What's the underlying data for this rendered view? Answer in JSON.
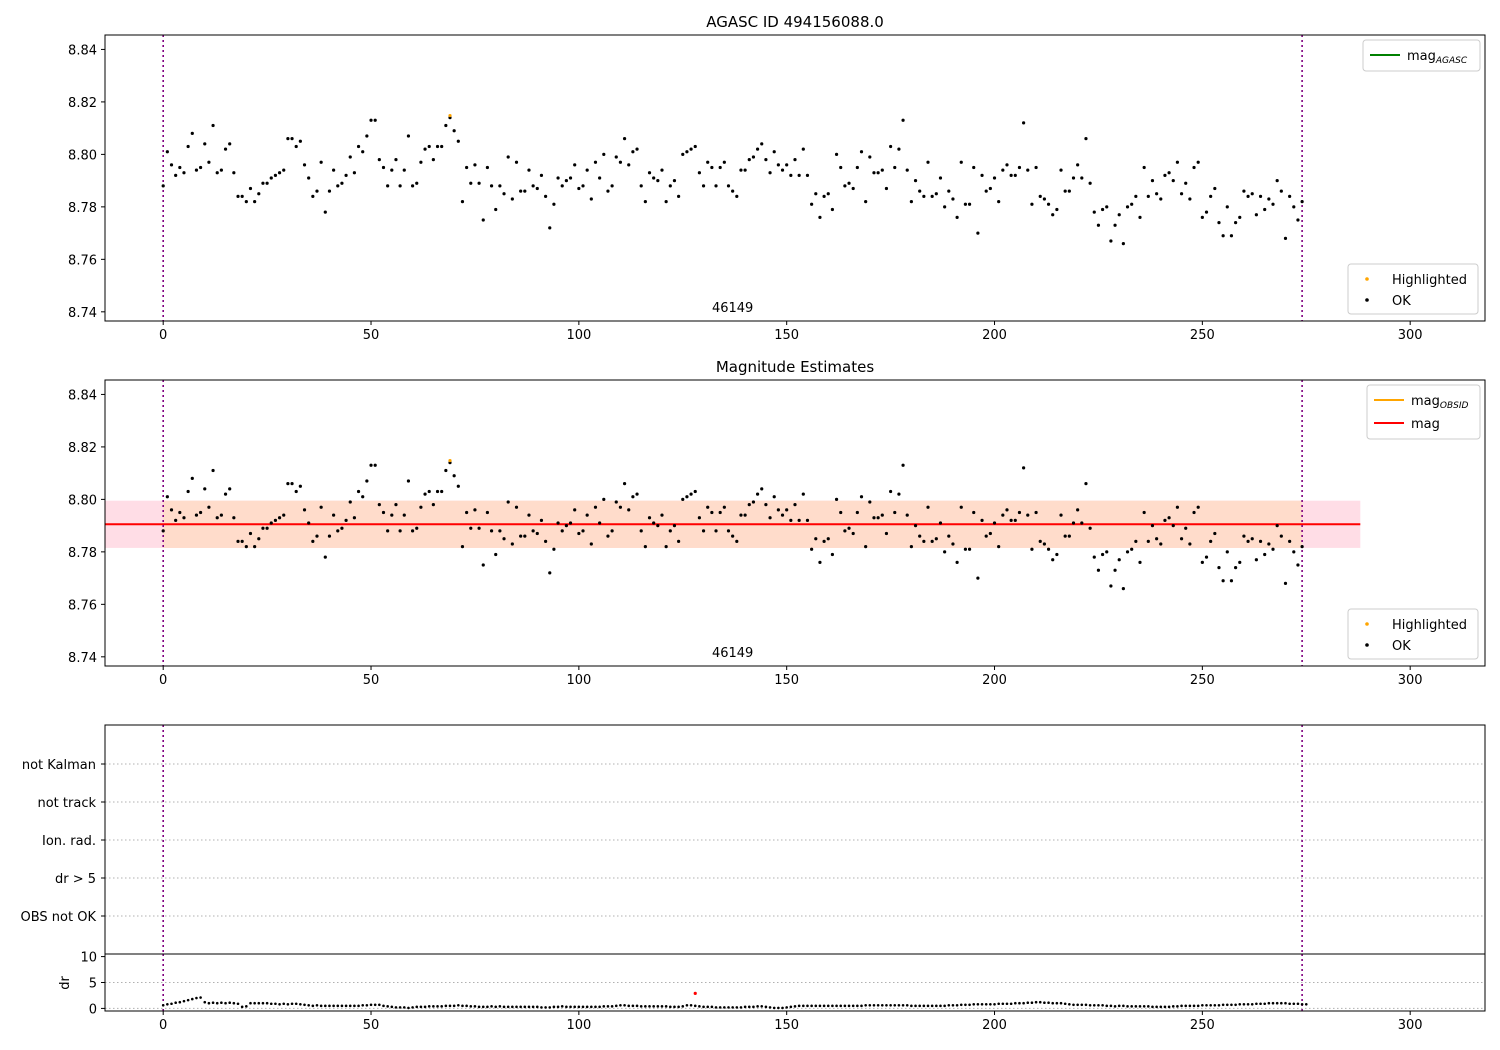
{
  "chart_data": [
    {
      "type": "scatter",
      "title": "AGASC ID 494156088.0",
      "annotation": "46149",
      "xlim": [
        -14,
        318
      ],
      "ylim": [
        8.7365,
        8.8455
      ],
      "xticks": [
        0,
        50,
        100,
        150,
        200,
        250,
        300
      ],
      "yticks": [
        8.74,
        8.76,
        8.78,
        8.8,
        8.82,
        8.84
      ],
      "grid": false,
      "vlines": [
        0,
        274
      ],
      "legend_lines": {
        "placement": "top-right",
        "entries": [
          {
            "label": "mag",
            "sub": "AGASC",
            "color": "#008000"
          }
        ]
      },
      "legend_points": {
        "placement": "bottom-right",
        "entries": [
          {
            "label": "Highlighted",
            "color": "#ffa500"
          },
          {
            "label": "OK",
            "color": "#000000"
          }
        ]
      },
      "highlighted": [
        [
          69,
          8.8148
        ]
      ],
      "series": [
        {
          "name": "OK",
          "color": "#000000",
          "x_start": 0,
          "values": [
            8.788,
            8.801,
            8.796,
            8.792,
            8.795,
            8.793,
            8.803,
            8.808,
            8.794,
            8.795,
            8.804,
            8.797,
            8.811,
            8.793,
            8.794,
            8.802,
            8.804,
            8.793,
            8.784,
            8.784,
            8.782,
            8.787,
            8.782,
            8.785,
            8.789,
            8.789,
            8.791,
            8.792,
            8.793,
            8.794,
            8.806,
            8.806,
            8.803,
            8.805,
            8.796,
            8.791,
            8.784,
            8.786,
            8.797,
            8.778,
            8.786,
            8.794,
            8.788,
            8.789,
            8.792,
            8.799,
            8.793,
            8.803,
            8.801,
            8.807,
            8.813,
            8.813,
            8.798,
            8.795,
            8.788,
            8.794,
            8.798,
            8.788,
            8.794,
            8.807,
            8.788,
            8.789,
            8.797,
            8.802,
            8.803,
            8.798,
            8.803,
            8.803,
            8.811,
            8.814,
            8.809,
            8.805,
            8.782,
            8.795,
            8.789,
            8.796,
            8.789,
            8.775,
            8.795,
            8.788,
            8.779,
            8.788,
            8.785,
            8.799,
            8.783,
            8.797,
            8.786,
            8.786,
            8.794,
            8.788,
            8.787,
            8.792,
            8.784,
            8.772,
            8.781,
            8.791,
            8.788,
            8.79,
            8.791,
            8.796,
            8.787,
            8.788,
            8.794,
            8.783,
            8.797,
            8.791,
            8.8,
            8.786,
            8.788,
            8.799,
            8.797,
            8.806,
            8.796,
            8.801,
            8.802,
            8.788,
            8.782,
            8.793,
            8.791,
            8.79,
            8.794,
            8.782,
            8.788,
            8.79,
            8.784,
            8.8,
            8.801,
            8.802,
            8.803,
            8.793,
            8.788,
            8.797,
            8.795,
            8.788,
            8.795,
            8.797,
            8.788,
            8.786,
            8.784,
            8.794,
            8.794,
            8.798,
            8.799,
            8.802,
            8.804,
            8.798,
            8.793,
            8.801,
            8.796,
            8.794,
            8.796,
            8.792,
            8.798,
            8.792,
            8.802,
            8.792,
            8.781,
            8.785,
            8.776,
            8.784,
            8.785,
            8.779,
            8.8,
            8.795,
            8.788,
            8.789,
            8.787,
            8.795,
            8.801,
            8.782,
            8.799,
            8.793,
            8.793,
            8.794,
            8.787,
            8.803,
            8.795,
            8.802,
            8.813,
            8.794,
            8.782,
            8.79,
            8.786,
            8.784,
            8.797,
            8.784,
            8.785,
            8.791,
            8.78,
            8.786,
            8.783,
            8.776,
            8.797,
            8.781,
            8.781,
            8.795,
            8.77,
            8.792,
            8.786,
            8.787,
            8.791,
            8.782,
            8.794,
            8.796,
            8.792,
            8.792,
            8.795,
            8.812,
            8.794,
            8.781,
            8.795,
            8.784,
            8.783,
            8.781,
            8.777,
            8.779,
            8.794,
            8.786,
            8.786,
            8.791,
            8.796,
            8.791,
            8.806,
            8.789,
            8.778,
            8.773,
            8.779,
            8.78,
            8.767,
            8.773,
            8.777,
            8.766,
            8.78,
            8.781,
            8.784,
            8.776,
            8.795,
            8.784,
            8.79,
            8.785,
            8.783,
            8.792,
            8.793,
            8.79,
            8.797,
            8.785,
            8.789,
            8.783,
            8.795,
            8.797,
            8.776,
            8.778,
            8.784,
            8.787,
            8.774,
            8.769,
            8.78,
            8.769,
            8.774,
            8.776,
            8.786,
            8.784,
            8.785,
            8.777,
            8.784,
            8.779,
            8.783,
            8.781,
            8.79,
            8.786,
            8.768,
            8.784,
            8.78,
            8.775,
            8.782
          ]
        }
      ]
    },
    {
      "type": "scatter",
      "title": "Magnitude Estimates",
      "annotation": "46149",
      "xlim": [
        -14,
        318
      ],
      "ylim": [
        8.7365,
        8.8455
      ],
      "xticks": [
        0,
        50,
        100,
        150,
        200,
        250,
        300
      ],
      "yticks": [
        8.74,
        8.76,
        8.78,
        8.8,
        8.82,
        8.84
      ],
      "grid": false,
      "vlines": [
        0,
        274
      ],
      "mag_line": 8.7905,
      "band_outer": {
        "x": [
          -14,
          288
        ],
        "y": [
          8.7815,
          8.7995
        ],
        "color": "#ffdde6"
      },
      "band_inner": {
        "x": [
          0,
          274
        ],
        "y": [
          8.7815,
          8.7995
        ],
        "color": "#ffdccb"
      },
      "legend_lines": {
        "placement": "top-right",
        "entries": [
          {
            "label": "mag",
            "sub": "OBSID",
            "color": "#ffa500"
          },
          {
            "label": "mag",
            "sub": "",
            "color": "#ff0000"
          }
        ]
      },
      "legend_points": {
        "placement": "bottom-right",
        "entries": [
          {
            "label": "Highlighted",
            "color": "#ffa500"
          },
          {
            "label": "OK",
            "color": "#000000"
          }
        ]
      },
      "highlighted": [
        [
          69,
          8.8148
        ]
      ],
      "series": [
        {
          "name": "OK",
          "color": "#000000",
          "x_start": 0,
          "values": [
            8.788,
            8.801,
            8.796,
            8.792,
            8.795,
            8.793,
            8.803,
            8.808,
            8.794,
            8.795,
            8.804,
            8.797,
            8.811,
            8.793,
            8.794,
            8.802,
            8.804,
            8.793,
            8.784,
            8.784,
            8.782,
            8.787,
            8.782,
            8.785,
            8.789,
            8.789,
            8.791,
            8.792,
            8.793,
            8.794,
            8.806,
            8.806,
            8.803,
            8.805,
            8.796,
            8.791,
            8.784,
            8.786,
            8.797,
            8.778,
            8.786,
            8.794,
            8.788,
            8.789,
            8.792,
            8.799,
            8.793,
            8.803,
            8.801,
            8.807,
            8.813,
            8.813,
            8.798,
            8.795,
            8.788,
            8.794,
            8.798,
            8.788,
            8.794,
            8.807,
            8.788,
            8.789,
            8.797,
            8.802,
            8.803,
            8.798,
            8.803,
            8.803,
            8.811,
            8.814,
            8.809,
            8.805,
            8.782,
            8.795,
            8.789,
            8.796,
            8.789,
            8.775,
            8.795,
            8.788,
            8.779,
            8.788,
            8.785,
            8.799,
            8.783,
            8.797,
            8.786,
            8.786,
            8.794,
            8.788,
            8.787,
            8.792,
            8.784,
            8.772,
            8.781,
            8.791,
            8.788,
            8.79,
            8.791,
            8.796,
            8.787,
            8.788,
            8.794,
            8.783,
            8.797,
            8.791,
            8.8,
            8.786,
            8.788,
            8.799,
            8.797,
            8.806,
            8.796,
            8.801,
            8.802,
            8.788,
            8.782,
            8.793,
            8.791,
            8.79,
            8.794,
            8.782,
            8.788,
            8.79,
            8.784,
            8.8,
            8.801,
            8.802,
            8.803,
            8.793,
            8.788,
            8.797,
            8.795,
            8.788,
            8.795,
            8.797,
            8.788,
            8.786,
            8.784,
            8.794,
            8.794,
            8.798,
            8.799,
            8.802,
            8.804,
            8.798,
            8.793,
            8.801,
            8.796,
            8.794,
            8.796,
            8.792,
            8.798,
            8.792,
            8.802,
            8.792,
            8.781,
            8.785,
            8.776,
            8.784,
            8.785,
            8.779,
            8.8,
            8.795,
            8.788,
            8.789,
            8.787,
            8.795,
            8.801,
            8.782,
            8.799,
            8.793,
            8.793,
            8.794,
            8.787,
            8.803,
            8.795,
            8.802,
            8.813,
            8.794,
            8.782,
            8.79,
            8.786,
            8.784,
            8.797,
            8.784,
            8.785,
            8.791,
            8.78,
            8.786,
            8.783,
            8.776,
            8.797,
            8.781,
            8.781,
            8.795,
            8.77,
            8.792,
            8.786,
            8.787,
            8.791,
            8.782,
            8.794,
            8.796,
            8.792,
            8.792,
            8.795,
            8.812,
            8.794,
            8.781,
            8.795,
            8.784,
            8.783,
            8.781,
            8.777,
            8.779,
            8.794,
            8.786,
            8.786,
            8.791,
            8.796,
            8.791,
            8.806,
            8.789,
            8.778,
            8.773,
            8.779,
            8.78,
            8.767,
            8.773,
            8.777,
            8.766,
            8.78,
            8.781,
            8.784,
            8.776,
            8.795,
            8.784,
            8.79,
            8.785,
            8.783,
            8.792,
            8.793,
            8.79,
            8.797,
            8.785,
            8.789,
            8.783,
            8.795,
            8.797,
            8.776,
            8.778,
            8.784,
            8.787,
            8.774,
            8.769,
            8.78,
            8.769,
            8.774,
            8.776,
            8.786,
            8.784,
            8.785,
            8.777,
            8.784,
            8.779,
            8.783,
            8.781,
            8.79,
            8.786,
            8.768,
            8.784,
            8.78,
            8.775,
            8.782
          ]
        }
      ]
    },
    {
      "type": "scatter",
      "title": "",
      "xlim": [
        -14,
        318
      ],
      "vlines": [
        0,
        274
      ],
      "categories": [
        "not Kalman",
        "not track",
        "Ion. rad.",
        "dr > 5",
        "OBS not OK"
      ],
      "grid": true,
      "series": []
    },
    {
      "type": "scatter",
      "title": "",
      "ylabel": "dr",
      "xlim": [
        -14,
        318
      ],
      "ylim": [
        -0.5,
        10.5
      ],
      "xticks": [
        0,
        50,
        100,
        150,
        200,
        250,
        300
      ],
      "yticks": [
        0,
        5,
        10
      ],
      "grid": true,
      "vlines": [
        0,
        274
      ],
      "highlighted": [
        [
          128,
          2.9
        ]
      ],
      "series": [
        {
          "name": "dr",
          "color": "#000000",
          "x_start": 0,
          "values": [
            0.6,
            0.8,
            0.9,
            1.1,
            1.2,
            1.4,
            1.6,
            1.8,
            2.0,
            2.1,
            1.2,
            1.0,
            1.1,
            1.0,
            1.1,
            1.0,
            1.1,
            1.0,
            0.9,
            0.3,
            0.4,
            1.0,
            1.0,
            1.0,
            1.0,
            1.0,
            0.9,
            0.9,
            0.8,
            0.9,
            0.8,
            0.9,
            0.9,
            0.8,
            0.7,
            0.6,
            0.5,
            0.6,
            0.5,
            0.5,
            0.5,
            0.5,
            0.5,
            0.5,
            0.5,
            0.5,
            0.5,
            0.5,
            0.6,
            0.6,
            0.7,
            0.7,
            0.7,
            0.5,
            0.4,
            0.3,
            0.2,
            0.2,
            0.2,
            0.1,
            0.2,
            0.3,
            0.3,
            0.3,
            0.4,
            0.4,
            0.4,
            0.4,
            0.5,
            0.5,
            0.5,
            0.6,
            0.5,
            0.5,
            0.4,
            0.4,
            0.3,
            0.3,
            0.3,
            0.4,
            0.3,
            0.4,
            0.3,
            0.3,
            0.3,
            0.3,
            0.3,
            0.3,
            0.3,
            0.3,
            0.3,
            0.2,
            0.2,
            0.2,
            0.3,
            0.3,
            0.4,
            0.3,
            0.3,
            0.3,
            0.3,
            0.3,
            0.3,
            0.3,
            0.3,
            0.3,
            0.4,
            0.4,
            0.4,
            0.5,
            0.6,
            0.6,
            0.5,
            0.5,
            0.5,
            0.4,
            0.4,
            0.4,
            0.4,
            0.4,
            0.4,
            0.4,
            0.3,
            0.3,
            0.3,
            0.4,
            0.6,
            0.6,
            0.5,
            0.4,
            0.3,
            0.3,
            0.3,
            0.2,
            0.2,
            0.2,
            0.2,
            0.2,
            0.2,
            0.2,
            0.3,
            0.3,
            0.3,
            0.4,
            0.4,
            0.3,
            0.2,
            0.1,
            0.1,
            0.1,
            0.2,
            0.3,
            0.4,
            0.5,
            0.5,
            0.5,
            0.5,
            0.5,
            0.5,
            0.5,
            0.5,
            0.5,
            0.5,
            0.5,
            0.5,
            0.5,
            0.5,
            0.5,
            0.5,
            0.6,
            0.6,
            0.6,
            0.6,
            0.6,
            0.6,
            0.6,
            0.6,
            0.6,
            0.6,
            0.6,
            0.5,
            0.5,
            0.5,
            0.5,
            0.5,
            0.5,
            0.5,
            0.5,
            0.5,
            0.6,
            0.6,
            0.6,
            0.7,
            0.7,
            0.7,
            0.8,
            0.8,
            0.8,
            0.8,
            0.8,
            0.8,
            0.9,
            0.9,
            0.9,
            0.9,
            1.0,
            1.0,
            1.0,
            1.1,
            1.1,
            1.2,
            1.2,
            1.1,
            1.1,
            1.0,
            1.0,
            1.0,
            0.9,
            0.8,
            0.7,
            0.7,
            0.7,
            0.7,
            0.6,
            0.6,
            0.6,
            0.6,
            0.5,
            0.5,
            0.4,
            0.5,
            0.5,
            0.4,
            0.4,
            0.4,
            0.4,
            0.4,
            0.4,
            0.3,
            0.3,
            0.3,
            0.3,
            0.3,
            0.4,
            0.4,
            0.5,
            0.5,
            0.5,
            0.5,
            0.5,
            0.6,
            0.6,
            0.6,
            0.6,
            0.6,
            0.7,
            0.7,
            0.7,
            0.7,
            0.8,
            0.8,
            0.8,
            0.8,
            0.9,
            0.9,
            0.9,
            1.0,
            1.0,
            1.0,
            1.0,
            1.0,
            0.9,
            0.9,
            0.9,
            0.8,
            0.8
          ]
        }
      ]
    }
  ]
}
